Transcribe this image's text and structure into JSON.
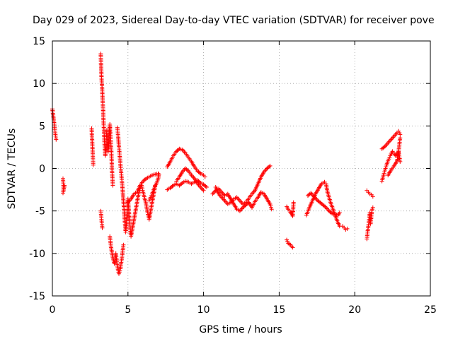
{
  "chart_data": {
    "type": "scatter",
    "title": "Day 029 of 2023, Sidereal Day-to-day VTEC variation (SDTVAR) for receiver pove",
    "xlabel": "GPS time / hours",
    "ylabel": "SDTVAR / TECUs",
    "xlim": [
      0,
      25
    ],
    "ylim": [
      -15,
      15
    ],
    "xticks": [
      "0",
      "5",
      "10",
      "15",
      "20",
      "25"
    ],
    "yticks": [
      "-15",
      "-10",
      "-5",
      "0",
      "5",
      "10",
      "15"
    ],
    "grid": true,
    "marker": "+",
    "series": [
      {
        "name": "SDTVAR",
        "color": "#ff0000",
        "segments": [
          [
            [
              0.0,
              7.0
            ],
            [
              0.05,
              6.3
            ],
            [
              0.1,
              5.6
            ],
            [
              0.15,
              4.8
            ],
            [
              0.2,
              4.0
            ],
            [
              0.25,
              3.4
            ]
          ],
          [
            [
              0.7,
              -1.2
            ],
            [
              0.72,
              -1.8
            ],
            [
              0.75,
              -2.4
            ],
            [
              0.8,
              -2.0
            ],
            [
              0.7,
              -2.9
            ]
          ],
          [
            [
              2.6,
              4.7
            ],
            [
              2.62,
              3.6
            ],
            [
              2.65,
              2.5
            ],
            [
              2.68,
              1.4
            ],
            [
              2.7,
              0.4
            ]
          ],
          [
            [
              3.2,
              13.5
            ],
            [
              3.22,
              12.2
            ],
            [
              3.25,
              10.8
            ],
            [
              3.3,
              9.0
            ],
            [
              3.35,
              7.0
            ],
            [
              3.4,
              5.0
            ],
            [
              3.45,
              3.0
            ],
            [
              3.5,
              1.5
            ],
            [
              3.55,
              3.0
            ],
            [
              3.6,
              4.5
            ],
            [
              3.65,
              3.2
            ],
            [
              3.7,
              2.0
            ],
            [
              3.75,
              3.8
            ],
            [
              3.8,
              5.2
            ],
            [
              3.85,
              3.5
            ],
            [
              3.9,
              2.0
            ],
            [
              3.95,
              -0.5
            ],
            [
              4.0,
              -2.0
            ]
          ],
          [
            [
              3.2,
              -5.0
            ],
            [
              3.25,
              -6.0
            ],
            [
              3.3,
              -7.0
            ]
          ],
          [
            [
              3.8,
              -8.0
            ],
            [
              3.9,
              -9.5
            ],
            [
              4.0,
              -10.5
            ],
            [
              4.1,
              -11.2
            ],
            [
              4.2,
              -10.0
            ],
            [
              4.3,
              -11.5
            ],
            [
              4.4,
              -12.4
            ],
            [
              4.5,
              -11.8
            ],
            [
              4.6,
              -10.5
            ],
            [
              4.7,
              -9.0
            ]
          ],
          [
            [
              4.3,
              4.8
            ],
            [
              4.35,
              3.8
            ],
            [
              4.4,
              2.6
            ],
            [
              4.45,
              1.6
            ],
            [
              4.5,
              0.5
            ],
            [
              4.55,
              -0.5
            ],
            [
              4.6,
              -1.5
            ],
            [
              4.65,
              -2.6
            ],
            [
              4.7,
              -3.8
            ],
            [
              4.75,
              -5.0
            ],
            [
              4.8,
              -6.4
            ],
            [
              4.85,
              -7.5
            ],
            [
              4.9,
              -6.5
            ],
            [
              4.95,
              -5.0
            ],
            [
              5.0,
              -3.6
            ],
            [
              5.05,
              -4.8
            ],
            [
              5.1,
              -6.0
            ],
            [
              5.15,
              -7.2
            ],
            [
              5.2,
              -8.0
            ],
            [
              5.3,
              -7.0
            ],
            [
              5.4,
              -6.0
            ],
            [
              5.5,
              -5.0
            ],
            [
              5.6,
              -4.0
            ],
            [
              5.7,
              -3.0
            ],
            [
              5.8,
              -2.4
            ],
            [
              5.9,
              -2.0
            ],
            [
              6.0,
              -2.8
            ],
            [
              6.1,
              -3.5
            ],
            [
              6.2,
              -4.2
            ],
            [
              6.3,
              -5.2
            ],
            [
              6.4,
              -6.0
            ],
            [
              6.5,
              -5.0
            ],
            [
              6.6,
              -4.0
            ],
            [
              6.7,
              -3.0
            ],
            [
              6.8,
              -2.0
            ]
          ],
          [
            [
              5.0,
              -4.0
            ],
            [
              5.2,
              -3.6
            ],
            [
              5.4,
              -3.0
            ],
            [
              5.6,
              -2.8
            ],
            [
              5.8,
              -2.0
            ],
            [
              6.0,
              -1.5
            ],
            [
              6.2,
              -1.2
            ],
            [
              6.4,
              -1.0
            ],
            [
              6.6,
              -0.8
            ],
            [
              6.8,
              -0.7
            ],
            [
              7.0,
              -0.6
            ]
          ],
          [
            [
              6.4,
              -3.8
            ],
            [
              6.5,
              -3.4
            ],
            [
              6.6,
              -3.0
            ],
            [
              6.7,
              -2.5
            ],
            [
              6.8,
              -2.1
            ],
            [
              6.9,
              -1.7
            ],
            [
              7.0,
              -1.2
            ],
            [
              7.05,
              -0.7
            ]
          ],
          [
            [
              7.6,
              0.2
            ],
            [
              7.8,
              0.8
            ],
            [
              8.0,
              1.5
            ],
            [
              8.2,
              2.0
            ],
            [
              8.4,
              2.3
            ],
            [
              8.6,
              2.2
            ],
            [
              8.8,
              1.8
            ],
            [
              9.0,
              1.3
            ],
            [
              9.2,
              0.8
            ],
            [
              9.4,
              0.2
            ],
            [
              9.6,
              -0.3
            ],
            [
              9.8,
              -0.6
            ],
            [
              10.0,
              -0.8
            ],
            [
              10.1,
              -1.0
            ]
          ],
          [
            [
              7.6,
              -2.5
            ],
            [
              7.8,
              -2.3
            ],
            [
              8.0,
              -2.0
            ],
            [
              8.2,
              -1.8
            ],
            [
              8.4,
              -2.0
            ],
            [
              8.6,
              -1.7
            ],
            [
              8.8,
              -1.5
            ],
            [
              9.0,
              -1.6
            ],
            [
              9.2,
              -1.8
            ],
            [
              9.4,
              -1.6
            ],
            [
              9.6,
              -1.4
            ],
            [
              9.8,
              -1.7
            ],
            [
              10.0,
              -1.9
            ],
            [
              10.2,
              -2.2
            ]
          ],
          [
            [
              8.2,
              -1.5
            ],
            [
              8.4,
              -1.0
            ],
            [
              8.6,
              -0.4
            ],
            [
              8.8,
              0.0
            ],
            [
              9.0,
              -0.3
            ],
            [
              9.2,
              -0.8
            ],
            [
              9.4,
              -1.2
            ],
            [
              9.6,
              -1.8
            ],
            [
              9.8,
              -2.2
            ],
            [
              10.0,
              -2.6
            ]
          ],
          [
            [
              10.6,
              -3.0
            ],
            [
              10.8,
              -2.6
            ],
            [
              11.0,
              -2.4
            ],
            [
              11.2,
              -2.8
            ],
            [
              11.4,
              -3.2
            ],
            [
              11.6,
              -3.0
            ],
            [
              11.8,
              -3.6
            ],
            [
              12.0,
              -4.2
            ],
            [
              12.2,
              -4.8
            ],
            [
              12.4,
              -5.0
            ],
            [
              12.6,
              -4.6
            ],
            [
              12.8,
              -4.3
            ],
            [
              13.0,
              -4.0
            ],
            [
              13.2,
              -4.6
            ],
            [
              13.4,
              -3.9
            ],
            [
              13.6,
              -3.4
            ],
            [
              13.8,
              -2.8
            ],
            [
              14.0,
              -3.0
            ],
            [
              14.2,
              -3.6
            ],
            [
              14.4,
              -4.2
            ],
            [
              14.5,
              -4.8
            ]
          ],
          [
            [
              10.8,
              -2.2
            ],
            [
              11.0,
              -3.0
            ],
            [
              11.2,
              -3.4
            ],
            [
              11.4,
              -3.8
            ],
            [
              11.6,
              -4.2
            ],
            [
              11.8,
              -4.0
            ],
            [
              12.0,
              -3.6
            ],
            [
              12.2,
              -3.4
            ],
            [
              12.4,
              -3.8
            ],
            [
              12.6,
              -4.2
            ],
            [
              12.8,
              -4.0
            ],
            [
              13.0,
              -3.5
            ],
            [
              13.2,
              -3.0
            ],
            [
              13.4,
              -2.6
            ],
            [
              13.6,
              -1.8
            ],
            [
              13.8,
              -1.0
            ],
            [
              14.0,
              -0.4
            ],
            [
              14.2,
              0.0
            ],
            [
              14.4,
              0.3
            ]
          ],
          [
            [
              15.5,
              -4.5
            ],
            [
              15.6,
              -4.8
            ],
            [
              15.7,
              -5.0
            ],
            [
              15.8,
              -5.3
            ],
            [
              15.9,
              -5.6
            ],
            [
              15.95,
              -4.0
            ]
          ],
          [
            [
              15.5,
              -8.4
            ],
            [
              15.6,
              -8.8
            ],
            [
              15.75,
              -9.0
            ],
            [
              15.9,
              -9.3
            ]
          ],
          [
            [
              16.8,
              -5.5
            ],
            [
              17.0,
              -4.6
            ],
            [
              17.2,
              -3.8
            ],
            [
              17.4,
              -3.0
            ],
            [
              17.6,
              -2.4
            ],
            [
              17.8,
              -1.8
            ],
            [
              18.0,
              -1.6
            ],
            [
              18.1,
              -1.8
            ],
            [
              18.2,
              -2.8
            ],
            [
              18.4,
              -4.0
            ],
            [
              18.6,
              -5.0
            ],
            [
              18.8,
              -6.0
            ],
            [
              19.0,
              -6.8
            ]
          ],
          [
            [
              16.9,
              -3.2
            ],
            [
              17.1,
              -2.9
            ],
            [
              17.3,
              -3.3
            ],
            [
              17.5,
              -3.7
            ],
            [
              17.7,
              -4.0
            ],
            [
              17.9,
              -4.3
            ],
            [
              18.1,
              -4.6
            ],
            [
              18.3,
              -5.0
            ],
            [
              18.5,
              -5.3
            ],
            [
              18.7,
              -5.4
            ],
            [
              18.9,
              -5.5
            ],
            [
              19.0,
              -5.2
            ]
          ],
          [
            [
              19.2,
              -6.8
            ],
            [
              19.3,
              -7.0
            ],
            [
              19.4,
              -7.2
            ],
            [
              19.5,
              -7.1
            ]
          ],
          [
            [
              20.8,
              -2.6
            ],
            [
              20.9,
              -2.8
            ],
            [
              21.0,
              -3.0
            ],
            [
              21.1,
              -3.1
            ],
            [
              21.2,
              -3.3
            ]
          ],
          [
            [
              20.8,
              -8.3
            ],
            [
              20.85,
              -7.5
            ],
            [
              20.9,
              -6.8
            ],
            [
              20.95,
              -6.0
            ],
            [
              21.0,
              -5.2
            ],
            [
              21.05,
              -6.5
            ],
            [
              21.1,
              -5.5
            ],
            [
              21.15,
              -4.8
            ],
            [
              21.2,
              -4.6
            ]
          ],
          [
            [
              21.8,
              -1.5
            ],
            [
              21.9,
              -0.8
            ],
            [
              22.0,
              -0.2
            ],
            [
              22.1,
              0.4
            ],
            [
              22.2,
              0.9
            ],
            [
              22.3,
              1.3
            ],
            [
              22.4,
              1.7
            ],
            [
              22.5,
              2.0
            ],
            [
              22.6,
              1.8
            ],
            [
              22.7,
              1.5
            ],
            [
              22.8,
              1.8
            ],
            [
              22.9,
              1.9
            ],
            [
              23.0,
              0.8
            ]
          ],
          [
            [
              21.8,
              2.3
            ],
            [
              22.0,
              2.6
            ],
            [
              22.2,
              3.0
            ],
            [
              22.4,
              3.4
            ],
            [
              22.6,
              3.8
            ],
            [
              22.8,
              4.2
            ],
            [
              22.9,
              4.4
            ],
            [
              23.0,
              4.0
            ]
          ],
          [
            [
              22.2,
              -0.8
            ],
            [
              22.4,
              -0.2
            ],
            [
              22.6,
              0.3
            ],
            [
              22.8,
              0.9
            ],
            [
              22.9,
              2.0
            ],
            [
              23.0,
              3.6
            ]
          ]
        ]
      }
    ]
  }
}
